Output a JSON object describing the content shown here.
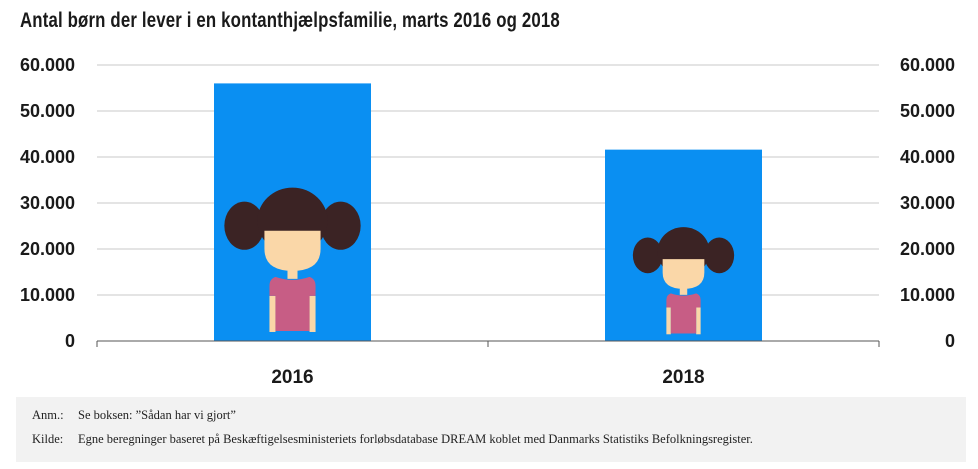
{
  "title": "Antal børn der lever i en kontanthjælpsfamilie, marts 2016 og 2018",
  "colors": {
    "bar": "#0a8ff2",
    "grid": "#c9c9c9",
    "hair": "#3b2324",
    "face": "#fad7a8",
    "shirt": "#c75d85"
  },
  "icon": "girl-icon",
  "chart_data": {
    "type": "bar",
    "categories": [
      "2016",
      "2018"
    ],
    "values": [
      56000,
      41600
    ],
    "title": "Antal børn der lever i en kontanthjælpsfamilie, marts 2016 og 2018",
    "xlabel": "",
    "ylabel": "",
    "ylim": [
      0,
      60000
    ],
    "yticks": [
      "0",
      "10.000",
      "20.000",
      "30.000",
      "40.000",
      "50.000",
      "60.000"
    ],
    "grid": true,
    "secondary_axis": true
  },
  "notes": {
    "anm_key": "Anm.:",
    "anm_text": "Se boksen: ”Sådan har vi gjort”",
    "kilde_key": "Kilde:",
    "kilde_text": "Egne beregninger baseret på Beskæftigelsesministeriets forløbsdatabase DREAM koblet med Danmarks Statistiks Befolkningsregister."
  }
}
